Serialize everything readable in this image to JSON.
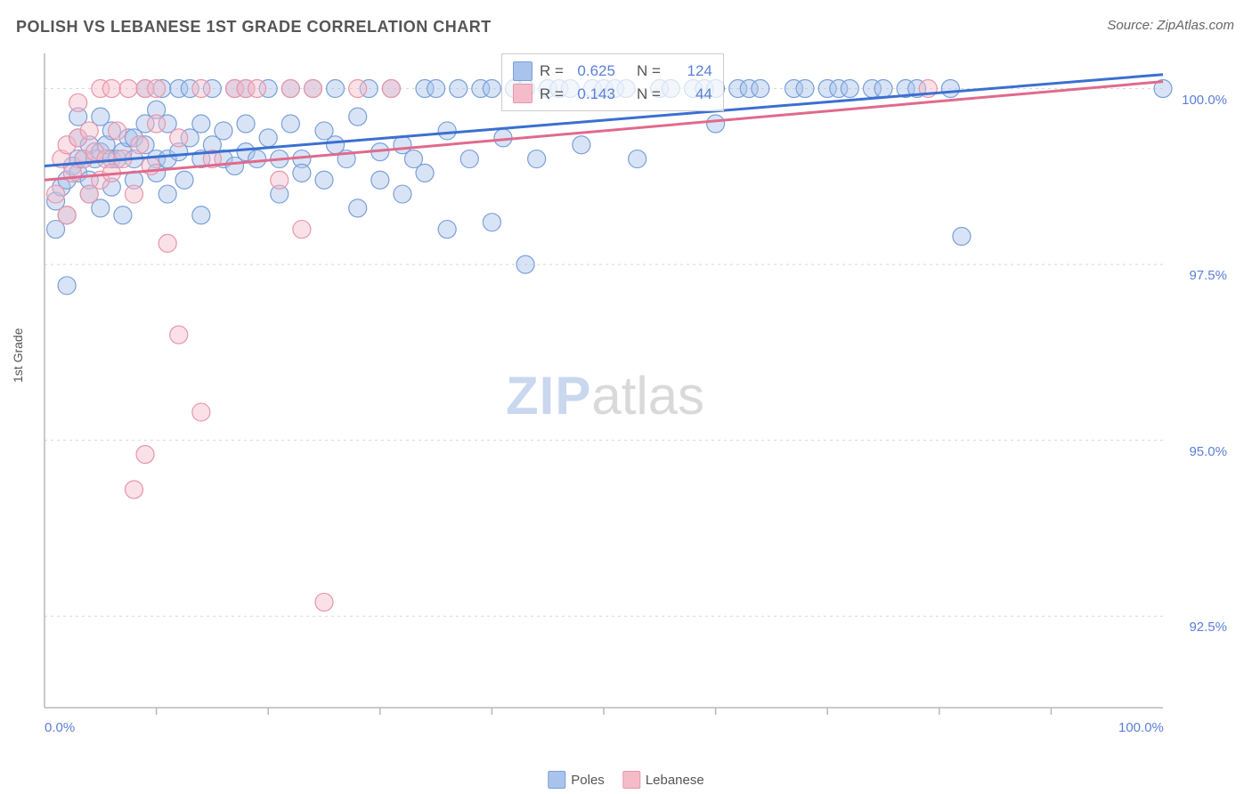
{
  "title": "POLISH VS LEBANESE 1ST GRADE CORRELATION CHART",
  "source_label": "Source:",
  "source_name": "ZipAtlas.com",
  "ylabel": "1st Grade",
  "watermark": {
    "part1": "ZIP",
    "part2": "atlas"
  },
  "chart": {
    "type": "scatter",
    "background_color": "#ffffff",
    "grid_color": "#d8d8d8",
    "axis_color": "#b8b8b8",
    "xlim": [
      0,
      100
    ],
    "ylim": [
      91.2,
      100.5
    ],
    "xticks_major": [
      0,
      100
    ],
    "xticks_minor": [
      10,
      20,
      30,
      40,
      50,
      60,
      70,
      80,
      90
    ],
    "xtick_labels": [
      "0.0%",
      "100.0%"
    ],
    "yticks": [
      92.5,
      95.0,
      97.5,
      100.0
    ],
    "ytick_labels": [
      "92.5%",
      "95.0%",
      "97.5%",
      "100.0%"
    ],
    "tick_label_color": "#5b7fd6",
    "tick_label_fontsize": 15,
    "marker_radius": 10,
    "marker_opacity": 0.45,
    "line_width": 3,
    "series": [
      {
        "name": "Poles",
        "color_fill": "#a9c3ec",
        "color_stroke": "#7a9fd8",
        "line_color": "#3b6fd1",
        "R": "0.625",
        "N": "124",
        "trend": {
          "x1": 0,
          "y1": 98.9,
          "x2": 100,
          "y2": 100.2
        },
        "points": [
          [
            1,
            98.0
          ],
          [
            1,
            98.4
          ],
          [
            1.5,
            98.6
          ],
          [
            2,
            98.7
          ],
          [
            2,
            97.2
          ],
          [
            2,
            98.2
          ],
          [
            2.5,
            98.9
          ],
          [
            3,
            99.0
          ],
          [
            3,
            98.8
          ],
          [
            3,
            99.3
          ],
          [
            3,
            99.6
          ],
          [
            3.5,
            99.0
          ],
          [
            4,
            98.7
          ],
          [
            4,
            99.2
          ],
          [
            4,
            98.5
          ],
          [
            4.5,
            99.0
          ],
          [
            5,
            99.1
          ],
          [
            5,
            98.3
          ],
          [
            5,
            99.6
          ],
          [
            5.5,
            99.2
          ],
          [
            6,
            99.0
          ],
          [
            6,
            98.6
          ],
          [
            6,
            99.4
          ],
          [
            6.5,
            99.0
          ],
          [
            7,
            99.1
          ],
          [
            7,
            98.2
          ],
          [
            7.5,
            99.3
          ],
          [
            8,
            99.3
          ],
          [
            8,
            99.0
          ],
          [
            8,
            98.7
          ],
          [
            9,
            99.2
          ],
          [
            9,
            99.5
          ],
          [
            9,
            100.0
          ],
          [
            10,
            99.0
          ],
          [
            10,
            98.8
          ],
          [
            10,
            99.7
          ],
          [
            10.5,
            100.0
          ],
          [
            11,
            99.0
          ],
          [
            11,
            98.5
          ],
          [
            11,
            99.5
          ],
          [
            12,
            100.0
          ],
          [
            12,
            99.1
          ],
          [
            12.5,
            98.7
          ],
          [
            13,
            99.3
          ],
          [
            13,
            100.0
          ],
          [
            14,
            99.0
          ],
          [
            14,
            99.5
          ],
          [
            14,
            98.2
          ],
          [
            15,
            99.2
          ],
          [
            15,
            100.0
          ],
          [
            16,
            99.0
          ],
          [
            16,
            99.4
          ],
          [
            17,
            100.0
          ],
          [
            17,
            98.9
          ],
          [
            18,
            99.1
          ],
          [
            18,
            100.0
          ],
          [
            18,
            99.5
          ],
          [
            19,
            99.0
          ],
          [
            20,
            99.3
          ],
          [
            20,
            100.0
          ],
          [
            21,
            99.0
          ],
          [
            21,
            98.5
          ],
          [
            22,
            99.5
          ],
          [
            22,
            100.0
          ],
          [
            23,
            99.0
          ],
          [
            23,
            98.8
          ],
          [
            24,
            100.0
          ],
          [
            25,
            99.4
          ],
          [
            25,
            98.7
          ],
          [
            26,
            99.2
          ],
          [
            26,
            100.0
          ],
          [
            27,
            99.0
          ],
          [
            28,
            99.6
          ],
          [
            28,
            98.3
          ],
          [
            29,
            100.0
          ],
          [
            30,
            99.1
          ],
          [
            30,
            98.7
          ],
          [
            31,
            100.0
          ],
          [
            32,
            99.2
          ],
          [
            32,
            98.5
          ],
          [
            33,
            99.0
          ],
          [
            34,
            100.0
          ],
          [
            34,
            98.8
          ],
          [
            35,
            100.0
          ],
          [
            36,
            99.4
          ],
          [
            36,
            98.0
          ],
          [
            37,
            100.0
          ],
          [
            38,
            99.0
          ],
          [
            39,
            100.0
          ],
          [
            40,
            98.1
          ],
          [
            40,
            100.0
          ],
          [
            41,
            99.3
          ],
          [
            42,
            100.0
          ],
          [
            43,
            97.5
          ],
          [
            43,
            100.0
          ],
          [
            44,
            99.0
          ],
          [
            45,
            100.0
          ],
          [
            46,
            100.0
          ],
          [
            47,
            100.0
          ],
          [
            48,
            99.2
          ],
          [
            49,
            100.0
          ],
          [
            50,
            100.0
          ],
          [
            51,
            100.0
          ],
          [
            52,
            100.0
          ],
          [
            53,
            99.0
          ],
          [
            55,
            100.0
          ],
          [
            56,
            100.0
          ],
          [
            58,
            100.0
          ],
          [
            59,
            100.0
          ],
          [
            60,
            100.0
          ],
          [
            60,
            99.5
          ],
          [
            62,
            100.0
          ],
          [
            63,
            100.0
          ],
          [
            64,
            100.0
          ],
          [
            67,
            100.0
          ],
          [
            68,
            100.0
          ],
          [
            70,
            100.0
          ],
          [
            71,
            100.0
          ],
          [
            72,
            100.0
          ],
          [
            74,
            100.0
          ],
          [
            75,
            100.0
          ],
          [
            77,
            100.0
          ],
          [
            78,
            100.0
          ],
          [
            81,
            100.0
          ],
          [
            82,
            97.9
          ],
          [
            100,
            100.0
          ]
        ]
      },
      {
        "name": "Lebanese",
        "color_fill": "#f4bcc9",
        "color_stroke": "#e895ab",
        "line_color": "#e06a8c",
        "R": "0.143",
        "N": "44",
        "trend": {
          "x1": 0,
          "y1": 98.7,
          "x2": 100,
          "y2": 100.1
        },
        "points": [
          [
            1,
            98.5
          ],
          [
            1.5,
            99.0
          ],
          [
            2,
            98.2
          ],
          [
            2,
            99.2
          ],
          [
            2.5,
            98.8
          ],
          [
            3,
            99.3
          ],
          [
            3,
            99.8
          ],
          [
            3.5,
            99.0
          ],
          [
            4,
            98.5
          ],
          [
            4,
            99.4
          ],
          [
            4.5,
            99.1
          ],
          [
            5,
            100.0
          ],
          [
            5,
            98.7
          ],
          [
            5.5,
            99.0
          ],
          [
            6,
            100.0
          ],
          [
            6,
            98.8
          ],
          [
            6.5,
            99.4
          ],
          [
            7,
            99.0
          ],
          [
            7.5,
            100.0
          ],
          [
            8,
            98.5
          ],
          [
            8,
            94.3
          ],
          [
            8.5,
            99.2
          ],
          [
            9,
            94.8
          ],
          [
            9,
            100.0
          ],
          [
            9.5,
            98.9
          ],
          [
            10,
            99.5
          ],
          [
            10,
            100.0
          ],
          [
            11,
            97.8
          ],
          [
            12,
            99.3
          ],
          [
            12,
            96.5
          ],
          [
            14,
            100.0
          ],
          [
            14,
            95.4
          ],
          [
            15,
            99.0
          ],
          [
            17,
            100.0
          ],
          [
            18,
            100.0
          ],
          [
            19,
            100.0
          ],
          [
            21,
            98.7
          ],
          [
            22,
            100.0
          ],
          [
            23,
            98.0
          ],
          [
            24,
            100.0
          ],
          [
            25,
            92.7
          ],
          [
            28,
            100.0
          ],
          [
            31,
            100.0
          ],
          [
            79,
            100.0
          ]
        ]
      }
    ]
  },
  "stats_box": {
    "R_label": "R =",
    "N_label": "N ="
  },
  "legend": {
    "items": [
      "Poles",
      "Lebanese"
    ]
  }
}
